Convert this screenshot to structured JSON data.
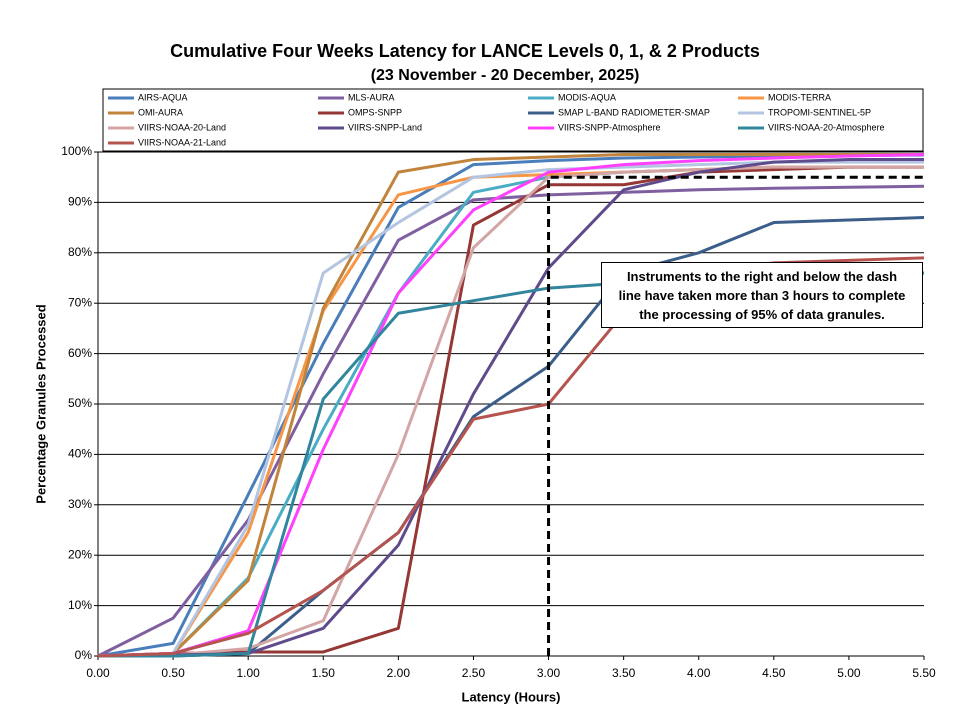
{
  "chart_data": {
    "type": "line",
    "title": "Cumulative Four Weeks Latency  for LANCE Levels 0, 1, & 2 Products",
    "subtitle": "(23  November   -  20  December,  2025)",
    "x_label": "Latency (Hours)",
    "y_label": "Percentage Granules Processed",
    "annotation": [
      "Instruments to the right and below the dash",
      "line have taken more than 3 hours to complete",
      "the processing of 95% of data granules."
    ],
    "reference_line": {
      "x": 3,
      "y": 95
    },
    "x": [
      0,
      0.5,
      1,
      1.5,
      2,
      2.5,
      3,
      3.5,
      4,
      4.5,
      5,
      5.5
    ],
    "xlim": [
      0,
      5.5
    ],
    "xticks": [
      {
        "value": 0,
        "label": "0.00"
      },
      {
        "value": 0.5,
        "label": "0.50"
      },
      {
        "value": 1,
        "label": "1.00"
      },
      {
        "value": 1.5,
        "label": "1.50"
      },
      {
        "value": 2,
        "label": "2.00"
      },
      {
        "value": 2.5,
        "label": "2.50"
      },
      {
        "value": 3,
        "label": "3.00"
      },
      {
        "value": 3.5,
        "label": "3.50"
      },
      {
        "value": 4,
        "label": "4.00"
      },
      {
        "value": 4.5,
        "label": "4.50"
      },
      {
        "value": 5,
        "label": "5.00"
      },
      {
        "value": 5.5,
        "label": "5.50"
      }
    ],
    "ylim": [
      0,
      100
    ],
    "yticks": [
      {
        "value": 0,
        "label": "0%"
      },
      {
        "value": 10,
        "label": "10%"
      },
      {
        "value": 20,
        "label": "20%"
      },
      {
        "value": 30,
        "label": "30%"
      },
      {
        "value": 40,
        "label": "40%"
      },
      {
        "value": 50,
        "label": "50%"
      },
      {
        "value": 60,
        "label": "60%"
      },
      {
        "value": 70,
        "label": "70%"
      },
      {
        "value": 80,
        "label": "80%"
      },
      {
        "value": 90,
        "label": "90%"
      },
      {
        "value": 100,
        "label": "100%"
      }
    ],
    "grid": true,
    "series": [
      {
        "name": "AIRS-AQUA",
        "color": "#4a7ebb",
        "values": [
          0,
          2.5,
          32,
          62,
          89,
          97.5,
          98.3,
          98.8,
          99,
          99.2,
          99.3,
          99.4
        ]
      },
      {
        "name": "MLS-AURA",
        "color": "#7f5fa0",
        "values": [
          0,
          7.5,
          27,
          56,
          82.5,
          90.5,
          91.5,
          92,
          92.5,
          92.8,
          93,
          93.2
        ]
      },
      {
        "name": "MODIS-AQUA",
        "color": "#4bacc6",
        "values": [
          0,
          0.5,
          15.5,
          45,
          72,
          92,
          95,
          96,
          96.5,
          97,
          97,
          97
        ]
      },
      {
        "name": "MODIS-TERRA",
        "color": "#f79646",
        "values": [
          0,
          0.5,
          24.5,
          68.5,
          91.5,
          95,
          95.5,
          96,
          96.5,
          97,
          97,
          97
        ]
      },
      {
        "name": "OMI-AURA",
        "color": "#c0843c",
        "values": [
          0,
          0.5,
          15,
          69,
          96,
          98.5,
          99,
          99.5,
          99.5,
          99.5,
          99.5,
          99.5
        ]
      },
      {
        "name": "OMPS-SNPP",
        "color": "#953735",
        "values": [
          0,
          0.5,
          0.8,
          0.8,
          5.5,
          85.5,
          93.5,
          93.5,
          96,
          96.5,
          97,
          97
        ]
      },
      {
        "name": "SMAP L-BAND RADIOMETER-SMAP",
        "color": "#3c5e8b",
        "values": [
          0,
          0,
          0.5,
          13,
          24.5,
          47.5,
          57.5,
          76,
          80,
          86,
          86.5,
          87
        ]
      },
      {
        "name": "TROPOMI-SENTINEL-5P",
        "color": "#b3c5e0",
        "values": [
          0,
          0.5,
          26,
          76,
          86,
          95,
          96.5,
          97,
          97.5,
          98,
          98,
          98
        ]
      },
      {
        "name": "VIIRS-NOAA-20-Land",
        "color": "#d4a5a5",
        "values": [
          0,
          0.2,
          1.5,
          7,
          40,
          81,
          95,
          96,
          96.5,
          97,
          97,
          97
        ]
      },
      {
        "name": "VIIRS-SNPP-Land",
        "color": "#5f4b8b",
        "values": [
          0,
          0.2,
          0.5,
          5.5,
          22,
          52,
          77,
          92.5,
          96,
          98,
          98.5,
          98.5
        ]
      },
      {
        "name": "VIIRS-SNPP-Atmosphere",
        "color": "#ff40ff",
        "values": [
          0,
          0.5,
          5,
          41,
          72,
          88.5,
          96,
          97.5,
          98.3,
          98.8,
          99.2,
          99.5
        ]
      },
      {
        "name": "VIIRS-NOAA-20-Atmosphere",
        "color": "#31859c",
        "values": [
          0,
          0,
          0.5,
          51,
          68,
          70.5,
          73,
          74,
          75,
          75.5,
          75.5,
          76
        ]
      },
      {
        "name": "VIIRS-NOAA-21-Land",
        "color": "#b5544f",
        "values": [
          0,
          0.5,
          4.5,
          13,
          24.5,
          47,
          50,
          68,
          76,
          78,
          78.5,
          79
        ]
      }
    ]
  }
}
